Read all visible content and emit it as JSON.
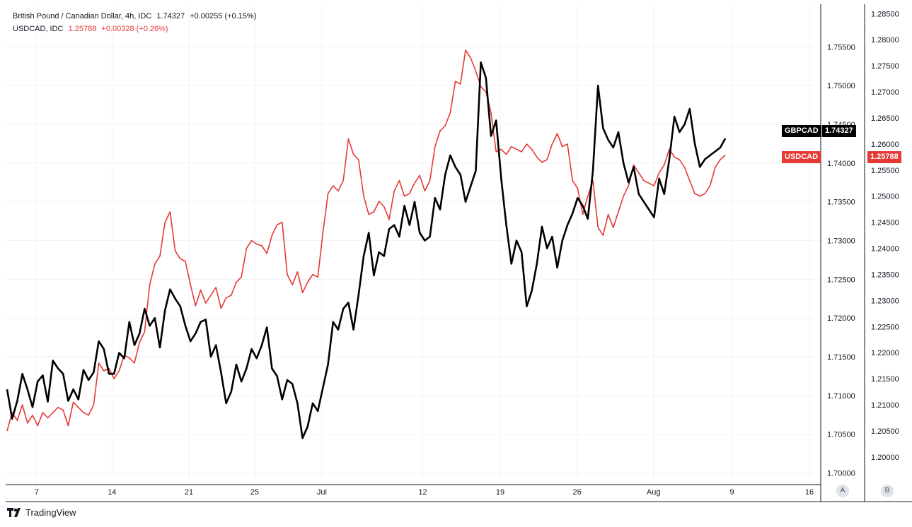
{
  "legend": {
    "gbp": {
      "name": "British Pound / Canadian Dollar, 4h, IDC",
      "price": "1.74327",
      "change": "+0.00255 (+0.15%)"
    },
    "usd": {
      "name": "USDCAD, IDC",
      "price": "1.25788",
      "change": "+0.00328 (+0.26%)"
    }
  },
  "badges": {
    "gbp": {
      "label": "GBPCAD",
      "price": "1.74327"
    },
    "usd": {
      "label": "USDCAD",
      "price": "1.25788"
    }
  },
  "axis_buttons": {
    "a": "A",
    "b": "B"
  },
  "branding": "TradingView",
  "colors": {
    "gbp": "#000000",
    "usd": "#e53935",
    "grid": "#f0f3fa",
    "axis_text": "#131722"
  },
  "chart_data": {
    "type": "line",
    "x_ticks": [
      "7",
      "14",
      "21",
      "25",
      "Jul",
      "12",
      "19",
      "26",
      "Aug",
      "9",
      "16"
    ],
    "axis_a": {
      "ticks": [
        "1.75500",
        "1.75000",
        "1.74500",
        "1.74000",
        "1.73500",
        "1.73000",
        "1.72500",
        "1.72000",
        "1.71500",
        "1.71000",
        "1.70500",
        "1.70000"
      ],
      "range": [
        1.6985,
        1.7605
      ]
    },
    "axis_b": {
      "ticks": [
        "1.28500",
        "1.28000",
        "1.27500",
        "1.27000",
        "1.26500",
        "1.26000",
        "1.25500",
        "1.25000",
        "1.24500",
        "1.24000",
        "1.23500",
        "1.23000",
        "1.22500",
        "1.22000",
        "1.21500",
        "1.21000",
        "1.20500",
        "1.20000"
      ],
      "range": [
        1.1947,
        1.2868
      ]
    },
    "series": [
      {
        "name": "GBPCAD",
        "axis": "A",
        "points": [
          [
            0,
            1.7108
          ],
          [
            1,
            1.707
          ],
          [
            2,
            1.7093
          ],
          [
            3,
            1.7128
          ],
          [
            4,
            1.7108
          ],
          [
            5,
            1.7085
          ],
          [
            6,
            1.7118
          ],
          [
            7,
            1.7126
          ],
          [
            8,
            1.7092
          ],
          [
            9,
            1.7145
          ],
          [
            10,
            1.7135
          ],
          [
            11,
            1.7128
          ],
          [
            12,
            1.7093
          ],
          [
            13,
            1.7108
          ],
          [
            14,
            1.7095
          ],
          [
            15,
            1.7133
          ],
          [
            16,
            1.712
          ],
          [
            17,
            1.713
          ],
          [
            18,
            1.717
          ],
          [
            19,
            1.716
          ],
          [
            20,
            1.7128
          ],
          [
            21,
            1.7128
          ],
          [
            22,
            1.7155
          ],
          [
            23,
            1.7148
          ],
          [
            24,
            1.7195
          ],
          [
            25,
            1.7165
          ],
          [
            26,
            1.718
          ],
          [
            27,
            1.7212
          ],
          [
            28,
            1.719
          ],
          [
            29,
            1.72
          ],
          [
            30,
            1.7162
          ],
          [
            31,
            1.721
          ],
          [
            32,
            1.7237
          ],
          [
            33,
            1.7225
          ],
          [
            34,
            1.7215
          ],
          [
            35,
            1.719
          ],
          [
            36,
            1.717
          ],
          [
            37,
            1.718
          ],
          [
            38,
            1.7195
          ],
          [
            39,
            1.7198
          ],
          [
            40,
            1.715
          ],
          [
            41,
            1.7165
          ],
          [
            42,
            1.713
          ],
          [
            43,
            1.709
          ],
          [
            44,
            1.7105
          ],
          [
            45,
            1.714
          ],
          [
            46,
            1.7118
          ],
          [
            47,
            1.7135
          ],
          [
            48,
            1.716
          ],
          [
            49,
            1.7148
          ],
          [
            50,
            1.7165
          ],
          [
            51,
            1.7188
          ],
          [
            52,
            1.7135
          ],
          [
            53,
            1.7125
          ],
          [
            54,
            1.7095
          ],
          [
            55,
            1.712
          ],
          [
            56,
            1.7115
          ],
          [
            57,
            1.709
          ],
          [
            58,
            1.7045
          ],
          [
            59,
            1.706
          ],
          [
            60,
            1.709
          ],
          [
            61,
            1.708
          ],
          [
            62,
            1.711
          ],
          [
            63,
            1.714
          ],
          [
            64,
            1.7195
          ],
          [
            65,
            1.7185
          ],
          [
            66,
            1.7212
          ],
          [
            67,
            1.722
          ],
          [
            68,
            1.7185
          ],
          [
            69,
            1.723
          ],
          [
            70,
            1.728
          ],
          [
            71,
            1.731
          ],
          [
            72,
            1.7255
          ],
          [
            73,
            1.7285
          ],
          [
            74,
            1.728
          ],
          [
            75,
            1.7315
          ],
          [
            76,
            1.732
          ],
          [
            77,
            1.7305
          ],
          [
            78,
            1.7345
          ],
          [
            79,
            1.732
          ],
          [
            80,
            1.735
          ],
          [
            81,
            1.731
          ],
          [
            82,
            1.73
          ],
          [
            83,
            1.7305
          ],
          [
            84,
            1.7355
          ],
          [
            85,
            1.734
          ],
          [
            86,
            1.7385
          ],
          [
            87,
            1.741
          ],
          [
            88,
            1.7395
          ],
          [
            89,
            1.7385
          ],
          [
            90,
            1.735
          ],
          [
            91,
            1.737
          ],
          [
            92,
            1.739
          ],
          [
            93,
            1.753
          ],
          [
            94,
            1.751
          ],
          [
            95,
            1.7435
          ],
          [
            96,
            1.7455
          ],
          [
            97,
            1.738
          ],
          [
            98,
            1.732
          ],
          [
            99,
            1.727
          ],
          [
            100,
            1.73
          ],
          [
            101,
            1.7285
          ],
          [
            102,
            1.7215
          ],
          [
            103,
            1.7235
          ],
          [
            104,
            1.727
          ],
          [
            105,
            1.7318
          ],
          [
            106,
            1.729
          ],
          [
            107,
            1.7305
          ],
          [
            108,
            1.7265
          ],
          [
            109,
            1.73
          ],
          [
            110,
            1.732
          ],
          [
            111,
            1.7335
          ],
          [
            112,
            1.7355
          ],
          [
            113,
            1.7345
          ],
          [
            114,
            1.7328
          ],
          [
            115,
            1.739
          ],
          [
            116,
            1.75
          ],
          [
            117,
            1.7445
          ],
          [
            118,
            1.743
          ],
          [
            119,
            1.742
          ],
          [
            120,
            1.744
          ],
          [
            121,
            1.74
          ],
          [
            122,
            1.7375
          ],
          [
            123,
            1.7395
          ],
          [
            124,
            1.736
          ],
          [
            125,
            1.735
          ],
          [
            126,
            1.734
          ],
          [
            127,
            1.733
          ],
          [
            128,
            1.738
          ],
          [
            129,
            1.736
          ],
          [
            130,
            1.7405
          ],
          [
            131,
            1.746
          ],
          [
            132,
            1.744
          ],
          [
            133,
            1.745
          ],
          [
            134,
            1.747
          ],
          [
            135,
            1.7425
          ],
          [
            136,
            1.7395
          ],
          [
            137,
            1.7405
          ],
          [
            138,
            1.741
          ],
          [
            139,
            1.7415
          ],
          [
            140,
            1.742
          ],
          [
            141,
            1.7432
          ]
        ]
      },
      {
        "name": "USDCAD",
        "axis": "B",
        "points": [
          [
            0,
            1.205
          ],
          [
            1,
            1.2085
          ],
          [
            2,
            1.207
          ],
          [
            3,
            1.21
          ],
          [
            4,
            1.2065
          ],
          [
            5,
            1.208
          ],
          [
            6,
            1.206
          ],
          [
            7,
            1.2085
          ],
          [
            8,
            1.2075
          ],
          [
            9,
            1.2085
          ],
          [
            10,
            1.2095
          ],
          [
            11,
            1.209
          ],
          [
            12,
            1.206
          ],
          [
            13,
            1.2105
          ],
          [
            14,
            1.2095
          ],
          [
            15,
            1.2085
          ],
          [
            16,
            1.208
          ],
          [
            17,
            1.21
          ],
          [
            18,
            1.218
          ],
          [
            19,
            1.2165
          ],
          [
            20,
            1.217
          ],
          [
            21,
            1.215
          ],
          [
            22,
            1.2165
          ],
          [
            23,
            1.2195
          ],
          [
            24,
            1.219
          ],
          [
            25,
            1.218
          ],
          [
            26,
            1.222
          ],
          [
            27,
            1.224
          ],
          [
            28,
            1.233
          ],
          [
            29,
            1.237
          ],
          [
            30,
            1.2385
          ],
          [
            31,
            1.245
          ],
          [
            32,
            1.247
          ],
          [
            33,
            1.2395
          ],
          [
            34,
            1.238
          ],
          [
            35,
            1.2375
          ],
          [
            36,
            1.233
          ],
          [
            37,
            1.229
          ],
          [
            38,
            1.232
          ],
          [
            39,
            1.2295
          ],
          [
            40,
            1.231
          ],
          [
            41,
            1.2325
          ],
          [
            42,
            1.2285
          ],
          [
            43,
            1.2305
          ],
          [
            44,
            1.231
          ],
          [
            45,
            1.2335
          ],
          [
            46,
            1.2345
          ],
          [
            47,
            1.24
          ],
          [
            48,
            1.2415
          ],
          [
            49,
            1.2408
          ],
          [
            50,
            1.2405
          ],
          [
            51,
            1.239
          ],
          [
            52,
            1.2425
          ],
          [
            53,
            1.2445
          ],
          [
            54,
            1.245
          ],
          [
            55,
            1.235
          ],
          [
            56,
            1.233
          ],
          [
            57,
            1.2355
          ],
          [
            58,
            1.2315
          ],
          [
            59,
            1.2335
          ],
          [
            60,
            1.235
          ],
          [
            61,
            1.2345
          ],
          [
            62,
            1.243
          ],
          [
            63,
            1.2505
          ],
          [
            64,
            1.252
          ],
          [
            65,
            1.251
          ],
          [
            66,
            1.253
          ],
          [
            67,
            1.261
          ],
          [
            68,
            1.258
          ],
          [
            69,
            1.257
          ],
          [
            70,
            1.25
          ],
          [
            71,
            1.2465
          ],
          [
            72,
            1.247
          ],
          [
            73,
            1.249
          ],
          [
            74,
            1.248
          ],
          [
            75,
            1.2455
          ],
          [
            76,
            1.251
          ],
          [
            77,
            1.253
          ],
          [
            78,
            1.25
          ],
          [
            79,
            1.2505
          ],
          [
            80,
            1.2525
          ],
          [
            81,
            1.254
          ],
          [
            82,
            1.251
          ],
          [
            83,
            1.253
          ],
          [
            84,
            1.2595
          ],
          [
            85,
            1.2625
          ],
          [
            86,
            1.2635
          ],
          [
            87,
            1.266
          ],
          [
            88,
            1.272
          ],
          [
            89,
            1.2715
          ],
          [
            90,
            1.278
          ],
          [
            91,
            1.2765
          ],
          [
            92,
            1.274
          ],
          [
            93,
            1.271
          ],
          [
            94,
            1.27
          ],
          [
            95,
            1.266
          ],
          [
            96,
            1.2585
          ],
          [
            97,
            1.259
          ],
          [
            98,
            1.258
          ],
          [
            99,
            1.2595
          ],
          [
            100,
            1.259
          ],
          [
            101,
            1.2585
          ],
          [
            102,
            1.26
          ],
          [
            103,
            1.259
          ],
          [
            104,
            1.2575
          ],
          [
            105,
            1.2565
          ],
          [
            106,
            1.257
          ],
          [
            107,
            1.26
          ],
          [
            108,
            1.262
          ],
          [
            109,
            1.2595
          ],
          [
            110,
            1.26
          ],
          [
            111,
            1.253
          ],
          [
            112,
            1.2515
          ],
          [
            113,
            1.2465
          ],
          [
            114,
            1.25
          ],
          [
            115,
            1.253
          ],
          [
            116,
            1.244
          ],
          [
            117,
            1.2425
          ],
          [
            118,
            1.2465
          ],
          [
            119,
            1.244
          ],
          [
            120,
            1.247
          ],
          [
            121,
            1.25
          ],
          [
            122,
            1.252
          ],
          [
            123,
            1.256
          ],
          [
            124,
            1.2545
          ],
          [
            125,
            1.253
          ],
          [
            126,
            1.2525
          ],
          [
            127,
            1.252
          ],
          [
            128,
            1.2545
          ],
          [
            129,
            1.256
          ],
          [
            130,
            1.259
          ],
          [
            131,
            1.2575
          ],
          [
            132,
            1.257
          ],
          [
            133,
            1.2555
          ],
          [
            134,
            1.253
          ],
          [
            135,
            1.2505
          ],
          [
            136,
            1.25
          ],
          [
            137,
            1.2505
          ],
          [
            138,
            1.252
          ],
          [
            139,
            1.2555
          ],
          [
            140,
            1.257
          ],
          [
            141,
            1.2579
          ]
        ]
      }
    ]
  }
}
